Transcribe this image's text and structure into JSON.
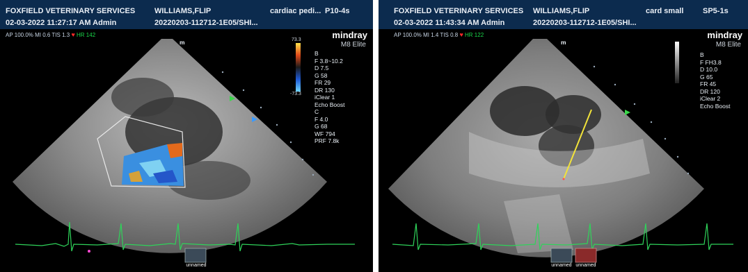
{
  "left": {
    "clinic": "FOXFIELD VETERINARY SERVICES",
    "patient": "WILLIAMS,FLIP",
    "exam": "cardiac pedi...",
    "probe": "P10-4s",
    "datetime": "02-03-2022 11:27:17 AM Admin",
    "study_id": "20220203-112712-1E05/SHI...",
    "status": "AP 100.0%  MI 0.6  TIS 1.3",
    "hr": "HR 142",
    "brand": "mindray",
    "model": "M8 Elite",
    "scale_top": "73.3",
    "scale_bottom": "-73.3",
    "params": "B\nF 3.8~10.2\nD 7.5\nG 58\nFR 29\nDR 130\niClear 1\nEcho Boost\nC\nF 4.0\nG 68\nWF 794\nPRF 7.8k",
    "marker": "m",
    "thumb_label": "unnamed"
  },
  "right": {
    "clinic": "FOXFIELD VETERINARY SERVICES",
    "patient": "WILLIAMS,FLIP",
    "exam": "card small",
    "probe": "SP5-1s",
    "datetime": "02-03-2022 11:43:34 AM Admin",
    "study_id": "20220203-112712-1E05/SHI...",
    "status": "AP 100.0%  MI 1.4  TIS 0.8",
    "hr": "HR 122",
    "brand": "mindray",
    "model": "M8 Elite",
    "params": "B\nF FH3.8\nD 10.0\nG 65\nFR 45\nDR 120\niClear 2\nEcho Boost",
    "marker": "m",
    "thumb_label_1": "unnamed",
    "thumb_label_2": "unnamed"
  },
  "colors": {
    "header": "#0c2b4e",
    "ecg": "#2fd35a",
    "hr": "#19d84a",
    "caliper": "#f2e33a"
  }
}
